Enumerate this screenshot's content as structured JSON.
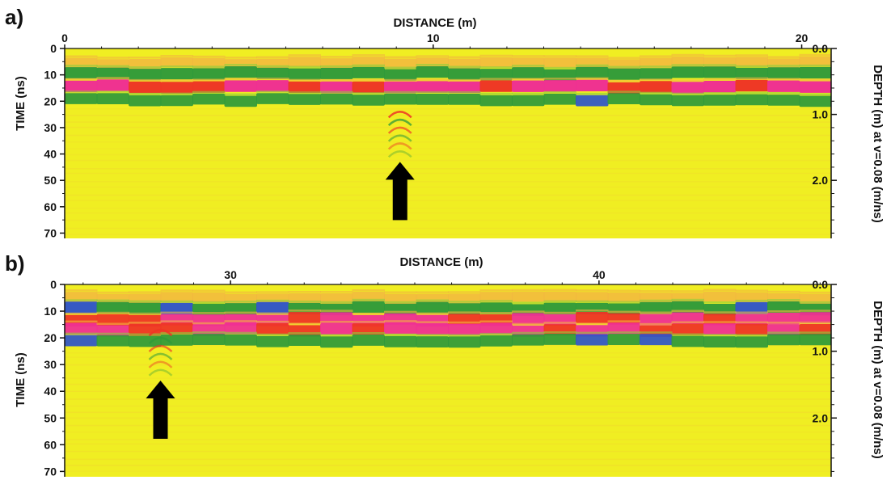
{
  "chart_data": [
    {
      "type": "heatmap",
      "panel_label": "a)",
      "title": "",
      "xlabel": "DISTANCE (m)",
      "ylabel": "TIME (ns)",
      "y2label": "DEPTH (m) at v=0.08 (m/ns)",
      "xlim": [
        0,
        20.8
      ],
      "ylim": [
        0,
        72
      ],
      "y2lim": [
        0,
        2.88
      ],
      "x_ticks": [
        0,
        10,
        20
      ],
      "y_ticks": [
        0,
        10,
        20,
        30,
        40,
        50,
        60,
        70
      ],
      "y2_ticks": [
        "0.0",
        "1.0",
        "2.0"
      ],
      "y2_tick_values": [
        0,
        1,
        2
      ],
      "colors": {
        "background": "#f0ee22",
        "orange": "#f2b640",
        "red": "#ee3526",
        "magenta": "#ef2f93",
        "green": "#2f9a3a",
        "blue": "#2f55c8"
      },
      "reflections": [
        {
          "time_ns": 5.5,
          "polarity": "positive",
          "strength": 0.55
        },
        {
          "time_ns": 9.5,
          "polarity": "negative",
          "strength": 0.9
        },
        {
          "time_ns": 14.5,
          "polarity": "positive",
          "strength": 0.95
        },
        {
          "time_ns": 19.5,
          "polarity": "negative",
          "strength": 0.8
        }
      ],
      "anomaly": {
        "distance_m": 9.1,
        "time_ns": 24,
        "arrow": "up"
      }
    },
    {
      "type": "heatmap",
      "panel_label": "b)",
      "title": "",
      "xlabel": "DISTANCE (m)",
      "ylabel": "TIME (ns)",
      "y2label": "DEPTH (m) at v=0.08 (m/ns)",
      "xlim": [
        25.5,
        46.3
      ],
      "ylim": [
        0,
        72
      ],
      "y2lim": [
        0,
        2.88
      ],
      "x_ticks": [
        30,
        40
      ],
      "y_ticks": [
        0,
        10,
        20,
        30,
        40,
        50,
        60,
        70
      ],
      "y2_ticks": [
        "0.0",
        "1.0",
        "2.0"
      ],
      "y2_tick_values": [
        0,
        1,
        2
      ],
      "colors": {
        "background": "#f0ee22",
        "orange": "#f2b640",
        "red": "#ee3526",
        "magenta": "#ef2f93",
        "green": "#2f9a3a",
        "blue": "#2f55c8"
      },
      "reflections": [
        {
          "time_ns": 5,
          "polarity": "positive",
          "strength": 0.55
        },
        {
          "time_ns": 9,
          "polarity": "negative",
          "strength": 0.9
        },
        {
          "time_ns": 13,
          "polarity": "positive",
          "strength": 0.85
        },
        {
          "time_ns": 17,
          "polarity": "positive",
          "strength": 0.85
        },
        {
          "time_ns": 21,
          "polarity": "negative",
          "strength": 0.8
        }
      ],
      "anomaly": {
        "distance_m": 28.1,
        "time_ns": 17,
        "arrow": "up"
      }
    }
  ]
}
